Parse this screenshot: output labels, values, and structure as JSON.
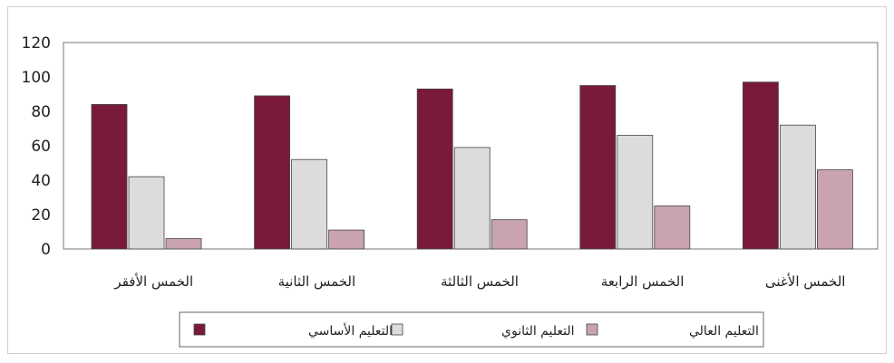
{
  "chart_data": {
    "type": "bar",
    "categories": [
      "الخمس الأفقر",
      "الخمس الثانية",
      "الخمس الثالثة",
      "الخمس الرابعة",
      "الخمس الأغنى"
    ],
    "series": [
      {
        "name": "التعليم الأساسي",
        "values": [
          84,
          89,
          93,
          95,
          97
        ],
        "color": "#7a1a3a"
      },
      {
        "name": "التعليم الثانوي",
        "values": [
          42,
          52,
          59,
          66,
          72
        ],
        "color": "#dcdcdc"
      },
      {
        "name": "التعليم العالي",
        "values": [
          6,
          11,
          17,
          25,
          46
        ],
        "color": "#c9a3ad"
      }
    ],
    "yticks": [
      0,
      20,
      40,
      60,
      80,
      100,
      120
    ],
    "ylim": [
      0,
      120
    ],
    "grid": false,
    "legend": "bottom",
    "title": "",
    "xlabel": "",
    "ylabel": ""
  }
}
